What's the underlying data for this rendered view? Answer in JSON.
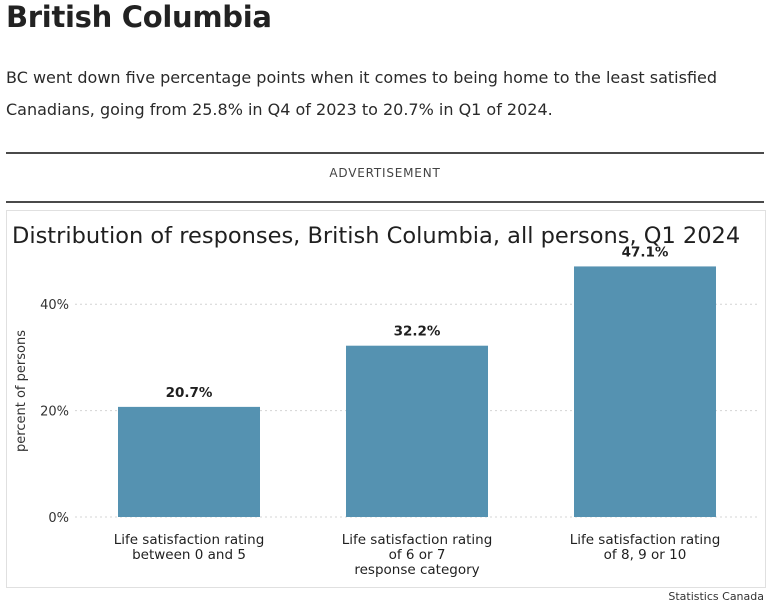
{
  "article": {
    "heading": "British Columbia",
    "paragraph": "BC went down five percentage points when it comes to being home to the least satisfied Canadians, going from 25.8% in Q4 of 2023 to 20.7% in Q1 of 2024.",
    "advertisement_label": "ADVERTISEMENT",
    "source": "Statistics Canada"
  },
  "colors": {
    "bar": "#5592b1",
    "grid": "#d4d4d4",
    "text": "#1f1f1f"
  },
  "chart_data": {
    "type": "bar",
    "title": "Distribution of responses, British Columbia, all persons, Q1 2024",
    "ylabel": "percent of persons",
    "xlabel": "",
    "categories": [
      [
        "Life satisfaction rating",
        "between 0 and 5"
      ],
      [
        "Life satisfaction rating",
        "of 6 or 7",
        "response category"
      ],
      [
        "Life satisfaction rating",
        "of 8, 9 or 10"
      ]
    ],
    "values": [
      20.7,
      32.2,
      47.1
    ],
    "value_labels": [
      "20.7%",
      "32.2%",
      "47.1%"
    ],
    "yticks": [
      0,
      20,
      40
    ],
    "ytick_labels": [
      "0%",
      "20%",
      "40%"
    ],
    "ylim": [
      0,
      50
    ],
    "grid": true,
    "grid_style": "dotted"
  }
}
